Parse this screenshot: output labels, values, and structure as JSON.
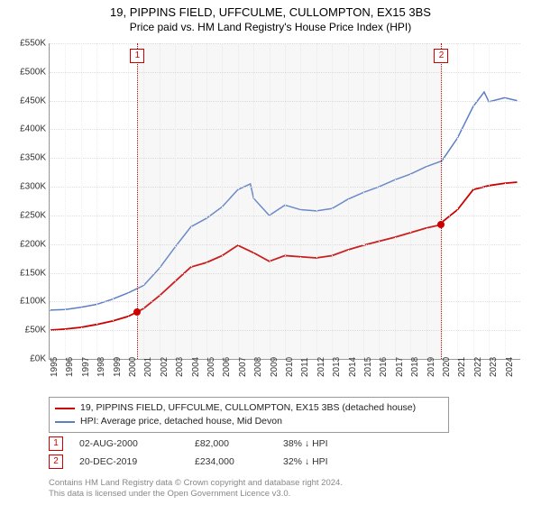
{
  "title_line1": "19, PIPPINS FIELD, UFFCULME, CULLOMPTON, EX15 3BS",
  "title_line2": "Price paid vs. HM Land Registry's House Price Index (HPI)",
  "chart": {
    "type": "line",
    "background_color": "#ffffff",
    "grid_color": "#dddddd",
    "y_axis": {
      "min": 0,
      "max": 550,
      "step": 50,
      "prefix": "£",
      "suffix": "K",
      "label_color": "#333333",
      "label_fontsize": 10
    },
    "x_axis": {
      "years": [
        1995,
        1996,
        1997,
        1998,
        1999,
        2000,
        2001,
        2002,
        2003,
        2004,
        2005,
        2006,
        2007,
        2008,
        2009,
        2010,
        2011,
        2012,
        2013,
        2014,
        2015,
        2016,
        2017,
        2018,
        2019,
        2020,
        2021,
        2022,
        2023,
        2024
      ],
      "label_color": "#333333",
      "label_fontsize": 10,
      "rotation": -90
    },
    "shaded_region": {
      "from_year": 2000.6,
      "to_year": 2019.97,
      "color": "rgba(200,200,200,0.15)"
    },
    "markers": [
      {
        "n": "1",
        "year": 2000.6,
        "color": "#cc0000"
      },
      {
        "n": "2",
        "year": 2019.97,
        "color": "#cc0000"
      }
    ],
    "series": [
      {
        "name": "property",
        "label": "19, PIPPINS FIELD, UFFCULME, CULLOMPTON, EX15 3BS (detached house)",
        "color": "#cc0000",
        "line_width": 1.8,
        "points": [
          [
            1995,
            50
          ],
          [
            1996,
            52
          ],
          [
            1997,
            55
          ],
          [
            1998,
            60
          ],
          [
            1999,
            66
          ],
          [
            2000,
            74
          ],
          [
            2000.6,
            82
          ],
          [
            2001,
            88
          ],
          [
            2002,
            110
          ],
          [
            2003,
            135
          ],
          [
            2004,
            160
          ],
          [
            2005,
            168
          ],
          [
            2006,
            180
          ],
          [
            2007,
            198
          ],
          [
            2008,
            185
          ],
          [
            2009,
            170
          ],
          [
            2010,
            180
          ],
          [
            2011,
            178
          ],
          [
            2012,
            176
          ],
          [
            2013,
            180
          ],
          [
            2014,
            190
          ],
          [
            2015,
            198
          ],
          [
            2016,
            205
          ],
          [
            2017,
            212
          ],
          [
            2018,
            220
          ],
          [
            2019,
            228
          ],
          [
            2019.97,
            234
          ],
          [
            2020,
            238
          ],
          [
            2021,
            260
          ],
          [
            2022,
            295
          ],
          [
            2023,
            302
          ],
          [
            2024,
            306
          ],
          [
            2024.8,
            308
          ]
        ],
        "dots": [
          {
            "year": 2000.6,
            "value": 82
          },
          {
            "year": 2019.97,
            "value": 234
          }
        ]
      },
      {
        "name": "hpi",
        "label": "HPI: Average price, detached house, Mid Devon",
        "color": "#5b7fc7",
        "line_width": 1.5,
        "points": [
          [
            1995,
            85
          ],
          [
            1996,
            86
          ],
          [
            1997,
            90
          ],
          [
            1998,
            95
          ],
          [
            1999,
            104
          ],
          [
            2000,
            115
          ],
          [
            2001,
            128
          ],
          [
            2002,
            158
          ],
          [
            2003,
            195
          ],
          [
            2004,
            230
          ],
          [
            2005,
            245
          ],
          [
            2006,
            265
          ],
          [
            2007,
            295
          ],
          [
            2007.8,
            305
          ],
          [
            2008,
            280
          ],
          [
            2009,
            250
          ],
          [
            2010,
            268
          ],
          [
            2011,
            260
          ],
          [
            2012,
            258
          ],
          [
            2013,
            262
          ],
          [
            2014,
            278
          ],
          [
            2015,
            290
          ],
          [
            2016,
            300
          ],
          [
            2017,
            312
          ],
          [
            2018,
            322
          ],
          [
            2019,
            335
          ],
          [
            2020,
            345
          ],
          [
            2021,
            385
          ],
          [
            2022,
            440
          ],
          [
            2022.7,
            465
          ],
          [
            2023,
            448
          ],
          [
            2024,
            455
          ],
          [
            2024.8,
            450
          ]
        ]
      }
    ]
  },
  "events": [
    {
      "n": "1",
      "date": "02-AUG-2000",
      "price": "£82,000",
      "pct": "38% ↓ HPI",
      "box_color": "#cc0000"
    },
    {
      "n": "2",
      "date": "20-DEC-2019",
      "price": "£234,000",
      "pct": "32% ↓ HPI",
      "box_color": "#cc0000"
    }
  ],
  "footer_line1": "Contains HM Land Registry data © Crown copyright and database right 2024.",
  "footer_line2": "This data is licensed under the Open Government Licence v3.0."
}
